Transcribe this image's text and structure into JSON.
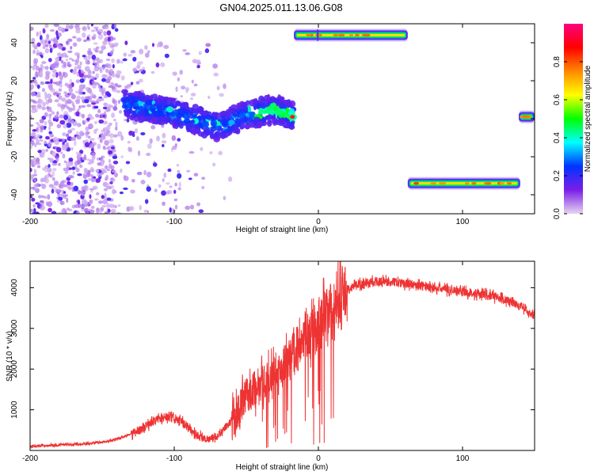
{
  "figure": {
    "title": "GN04.2025.011.13.06.G08"
  },
  "chart_data": [
    {
      "type": "heatmap",
      "xlabel": "Height of straight line (km)",
      "ylabel": "Frequency (Hz)",
      "xlim": [
        -200,
        150
      ],
      "ylim": [
        -50,
        50
      ],
      "xticks": [
        "-200",
        "-100",
        "0",
        "100"
      ],
      "xtick_values": [
        -200,
        -100,
        0,
        100
      ],
      "yticks": [
        "-40",
        "-20",
        "0",
        "20",
        "40"
      ],
      "ytick_values": [
        -40,
        -20,
        0,
        20,
        40
      ],
      "colorbar": {
        "label": "Normalized spectral amplitude",
        "range": [
          0,
          1
        ],
        "ticks": [
          "0.0",
          "0.2",
          "0.4",
          "0.6",
          "0.8"
        ],
        "tick_values": [
          0.0,
          0.2,
          0.4,
          0.6,
          0.8
        ],
        "colors": [
          "#e6d5ef",
          "#7b1ee8",
          "#0033ff",
          "#00ffff",
          "#00ff00",
          "#ffff00",
          "#ff8800",
          "#ff0000",
          "#ff0080"
        ]
      },
      "features": [
        {
          "kind": "diffuse-scatter",
          "x_range": [
            -200,
            -140
          ],
          "y_range": [
            -50,
            50
          ],
          "amplitude": 0.05
        },
        {
          "kind": "diffuse-scatter",
          "x_range": [
            -140,
            -60
          ],
          "y_range": [
            -50,
            40
          ],
          "amplitude": 0.03
        },
        {
          "kind": "sloping-band",
          "x": [
            -135,
            -100,
            -70,
            -50,
            -30,
            -17
          ],
          "y": [
            8,
            3,
            -4,
            2,
            5,
            1
          ],
          "amplitude": 0.3
        },
        {
          "kind": "tone-line",
          "x_range": [
            -17,
            62
          ],
          "y": 44,
          "amplitude": 0.7
        },
        {
          "kind": "tone-line",
          "x_range": [
            62,
            140
          ],
          "y": -34,
          "amplitude": 0.7
        },
        {
          "kind": "tone-line",
          "x_range": [
            139,
            150
          ],
          "y": 1,
          "amplitude": 0.5
        }
      ]
    },
    {
      "type": "line",
      "xlabel": "Height of straight line (km)",
      "ylabel": "SNR (10 * v/v)",
      "xlim": [
        -200,
        150
      ],
      "ylim": [
        0,
        4650
      ],
      "xticks": [
        "-200",
        "-100",
        "0",
        "100"
      ],
      "xtick_values": [
        -200,
        -100,
        0,
        100
      ],
      "yticks": [
        "1000",
        "2000",
        "3000",
        "4000"
      ],
      "ytick_values": [
        1000,
        2000,
        3000,
        4000
      ],
      "color": "#ee3333",
      "series": [
        {
          "x": [
            -200,
            -190,
            -180,
            -170,
            -160,
            -150,
            -140,
            -130,
            -120,
            -115,
            -110,
            -105,
            -100,
            -95,
            -90,
            -85,
            -80,
            -75,
            -70,
            -65,
            -60,
            -55,
            -50,
            -45,
            -40,
            -35,
            -30,
            -25,
            -20,
            -15,
            -10,
            -5,
            0,
            5,
            10,
            15,
            20,
            25,
            30,
            40,
            50,
            60,
            70,
            80,
            90,
            100,
            110,
            120,
            130,
            140,
            150
          ],
          "y": [
            100,
            120,
            140,
            150,
            170,
            200,
            280,
            400,
            580,
            700,
            780,
            800,
            780,
            700,
            550,
            400,
            300,
            280,
            350,
            550,
            750,
            1000,
            1350,
            1500,
            1650,
            1800,
            1950,
            2100,
            2300,
            2500,
            2800,
            3000,
            3200,
            3400,
            3600,
            3800,
            3950,
            4050,
            4100,
            4150,
            4150,
            4100,
            4050,
            4000,
            3950,
            3900,
            3850,
            3800,
            3700,
            3550,
            3300
          ]
        }
      ]
    }
  ]
}
